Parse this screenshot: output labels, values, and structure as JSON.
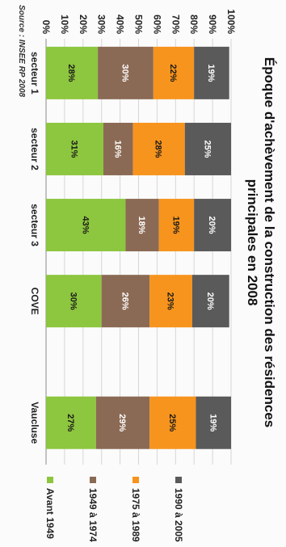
{
  "chart_data": {
    "type": "bar",
    "stacked": true,
    "title": [
      "Époque d'achèvement de la construction des résidences",
      "principales en 2008"
    ],
    "source": "Source : INSEE RP 2008",
    "categories": [
      "secteur 1",
      "secteur 2",
      "secteur 3",
      "COVE",
      "Vaucluse"
    ],
    "ylim": [
      0,
      100
    ],
    "yticks": [
      "0%",
      "10%",
      "20%",
      "30%",
      "40%",
      "50%",
      "60%",
      "70%",
      "80%",
      "90%",
      "100%"
    ],
    "grid": true,
    "legend_position": "right",
    "series": [
      {
        "name": "Avant 1949",
        "color": "#8dc63f",
        "values": [
          28,
          31,
          43,
          30,
          27
        ],
        "labels": [
          "28%",
          "31%",
          "43%",
          "30%",
          "27%"
        ]
      },
      {
        "name": "1949 à 1974",
        "color": "#8b6a55",
        "values": [
          30,
          16,
          18,
          26,
          29
        ],
        "labels": [
          "30%",
          "16%",
          "18%",
          "26%",
          "29%"
        ]
      },
      {
        "name": "1975 à 1989",
        "color": "#f7941d",
        "values": [
          22,
          28,
          19,
          23,
          25
        ],
        "labels": [
          "22%",
          "28%",
          "19%",
          "23%",
          "25%"
        ]
      },
      {
        "name": "1990 à 2005",
        "color": "#5a5a5a",
        "values": [
          19,
          25,
          20,
          20,
          19
        ],
        "labels": [
          "19%",
          "25%",
          "20%",
          "20%",
          "19%"
        ]
      }
    ]
  }
}
